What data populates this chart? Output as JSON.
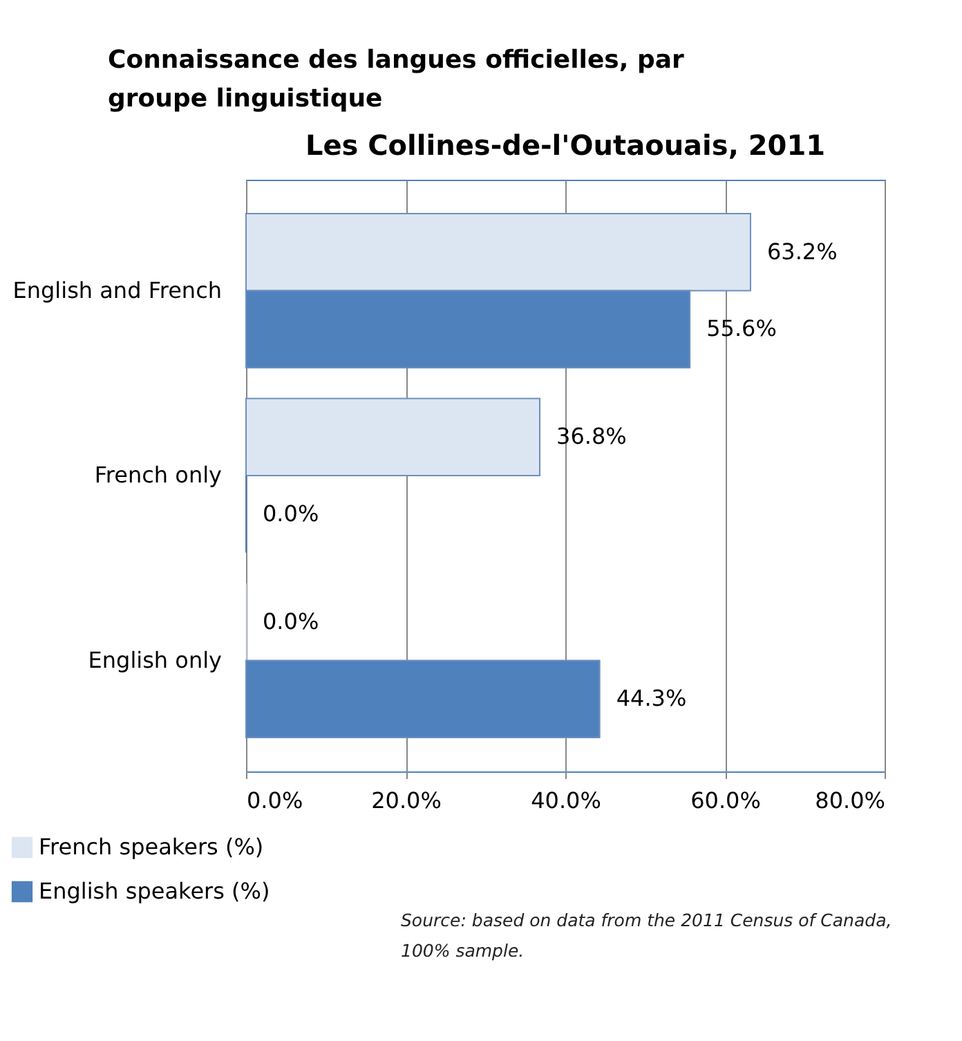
{
  "chart_data": {
    "type": "bar",
    "orientation": "horizontal",
    "title": "Connaissance des langues officielles, par groupe linguistique",
    "subtitle": "Les Collines-de-l'Outaouais, 2011",
    "categories": [
      "English and French",
      "French only",
      "English only"
    ],
    "series": [
      {
        "name": "French speakers (%)",
        "color": "#dce6f2",
        "values": [
          63.2,
          36.8,
          0.0
        ],
        "value_labels": [
          "63.2%",
          "36.8%",
          "0.0%"
        ]
      },
      {
        "name": "English speakers (%)",
        "color": "#4f81bd",
        "values": [
          55.6,
          0.0,
          44.3
        ],
        "value_labels": [
          "55.6%",
          "0.0%",
          "44.3%"
        ]
      }
    ],
    "xlim": [
      0,
      80
    ],
    "xticks": [
      {
        "value": 0,
        "label": "0.0%"
      },
      {
        "value": 20,
        "label": "20.0%"
      },
      {
        "value": 40,
        "label": "40.0%"
      },
      {
        "value": 60,
        "label": "60.0%"
      },
      {
        "value": 80,
        "label": "80.0%"
      }
    ],
    "grid": "x",
    "legend": "bottom left",
    "annotations": [
      "Source: based on data from the 2011 Census of Canada, 100% sample."
    ]
  }
}
